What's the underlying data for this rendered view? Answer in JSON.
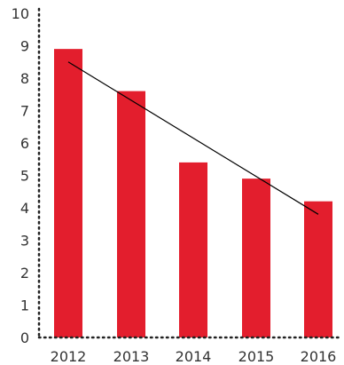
{
  "chart_data": {
    "type": "bar",
    "categories": [
      "2012",
      "2013",
      "2014",
      "2015",
      "2016"
    ],
    "values": [
      8.9,
      7.6,
      5.4,
      4.9,
      4.2
    ],
    "trendline": {
      "start": 8.5,
      "end": 3.8
    },
    "yticks": [
      "0",
      "1",
      "2",
      "3",
      "4",
      "5",
      "6",
      "7",
      "8",
      "9",
      "10"
    ],
    "ylim": [
      0,
      10
    ],
    "title": "",
    "xlabel": "",
    "ylabel": "",
    "grid": false,
    "bar_color": "#e31e2d",
    "trend_color": "#000000",
    "axis_color": "#222222"
  }
}
